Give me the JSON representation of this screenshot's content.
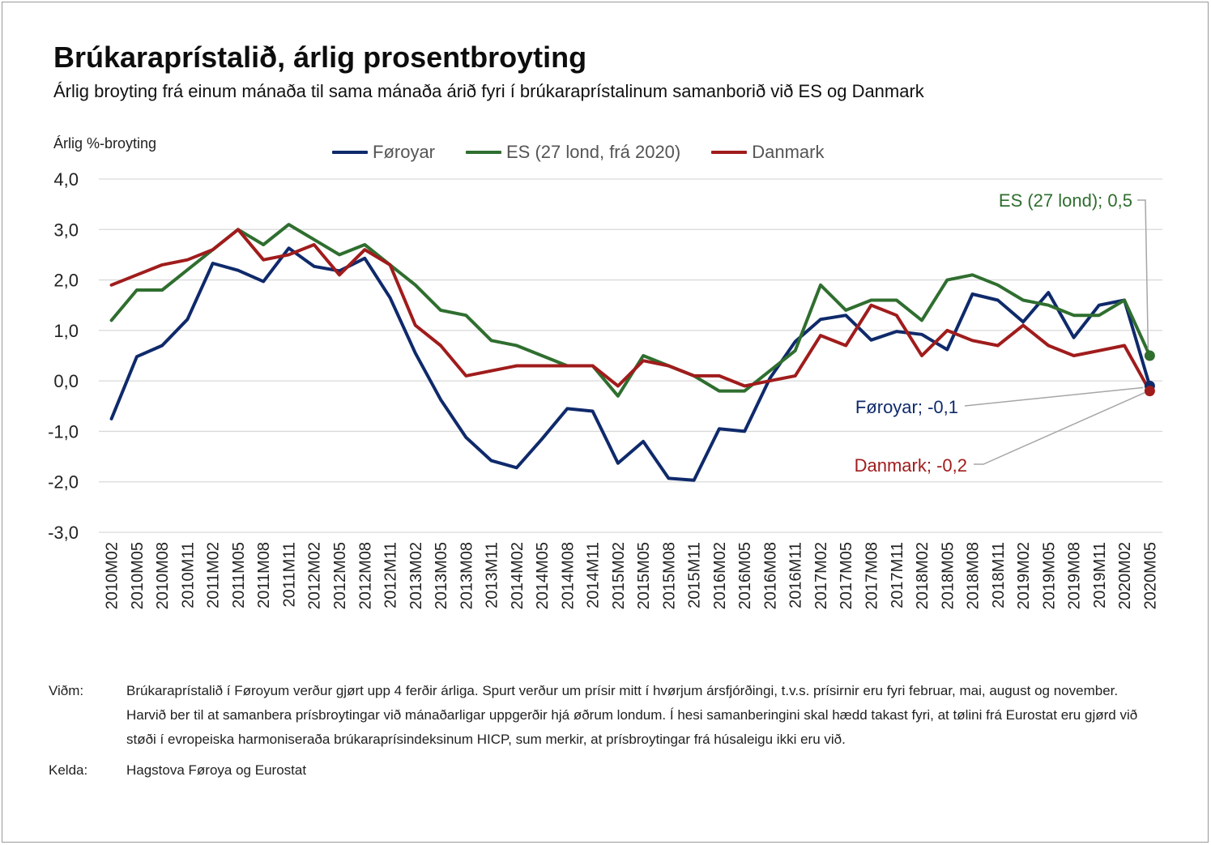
{
  "title": "Brúkaraprístalið, árlig prosentbroyting",
  "subtitle": "Árlig broyting frá einum mánaða til sama mánaða árið fyri í brúkaraprístalinum samanborið við ES og Danmark",
  "notes": {
    "label": "Viðm:",
    "text": "Brúkaraprístalið í Føroyum verður gjørt upp 4 ferðir árliga. Spurt verður um prísir mitt í hvørjum ársfjórðingi, t.v.s. prísirnir eru fyri februar, mai, august og november. Harvið ber til at samanbera prísbroytingar við mánaðarligar uppgerðir hjá øðrum londum. Í hesi samanberingini skal hædd takast fyri, at tølini frá Eurostat eru gjørd við støði í evropeiska harmoniseraða brúkaraprísindeksinum HICP, sum merkir, at prísbroytingar frá húsaleigu ikki eru  við."
  },
  "source": {
    "label": "Kelda:",
    "text": "Hagstova Føroya og Eurostat"
  },
  "chart_data": {
    "type": "line",
    "ylabel": "Árlig %-broyting",
    "ylim": [
      -3,
      4
    ],
    "yticks": [
      4,
      3,
      2,
      1,
      0,
      -1,
      -2,
      -3
    ],
    "ytick_labels": [
      "4,0",
      "3,0",
      "2,0",
      "1,0",
      "0,0",
      "-1,0",
      "-2,0",
      "-3,0"
    ],
    "grid": true,
    "legend_position": "top",
    "categories": [
      "2010M02",
      "2010M05",
      "2010M08",
      "2010M11",
      "2011M02",
      "2011M05",
      "2011M08",
      "2011M11",
      "2012M02",
      "2012M05",
      "2012M08",
      "2012M11",
      "2013M02",
      "2013M05",
      "2013M08",
      "2013M11",
      "2014M02",
      "2014M05",
      "2014M08",
      "2014M11",
      "2015M02",
      "2015M05",
      "2015M08",
      "2015M11",
      "2016M02",
      "2016M05",
      "2016M08",
      "2016M11",
      "2017M02",
      "2017M05",
      "2017M08",
      "2017M11",
      "2018M02",
      "2018M05",
      "2018M08",
      "2018M11",
      "2019M02",
      "2019M05",
      "2019M08",
      "2019M11",
      "2020M02",
      "2020M05"
    ],
    "series": [
      {
        "name": "Føroyar",
        "color": "#0f2a6b",
        "values": [
          -0.75,
          0.48,
          0.7,
          1.22,
          2.33,
          2.19,
          1.97,
          2.63,
          2.27,
          2.18,
          2.43,
          1.65,
          0.55,
          -0.37,
          -1.12,
          -1.58,
          -1.72,
          -1.15,
          -0.55,
          -0.6,
          -1.63,
          -1.2,
          -1.93,
          -1.97,
          -0.95,
          -1.0,
          0.05,
          0.78,
          1.22,
          1.3,
          0.81,
          0.98,
          0.92,
          0.62,
          1.72,
          1.6,
          1.17,
          1.75,
          0.86,
          1.5,
          1.6,
          -0.1
        ]
      },
      {
        "name": "ES (27 lond, frá 2020)",
        "color": "#2f6e2f",
        "values": [
          1.2,
          1.8,
          1.8,
          2.2,
          2.6,
          3.0,
          2.7,
          3.1,
          2.8,
          2.5,
          2.7,
          2.3,
          1.9,
          1.4,
          1.3,
          0.8,
          0.7,
          0.5,
          0.3,
          0.3,
          -0.3,
          0.5,
          0.3,
          0.1,
          -0.2,
          -0.2,
          0.2,
          0.6,
          1.9,
          1.4,
          1.6,
          1.6,
          1.2,
          2.0,
          2.1,
          1.9,
          1.6,
          1.5,
          1.3,
          1.3,
          1.6,
          0.5
        ]
      },
      {
        "name": "Danmark",
        "color": "#a01c1c",
        "values": [
          1.9,
          2.1,
          2.3,
          2.4,
          2.6,
          3.0,
          2.4,
          2.5,
          2.7,
          2.1,
          2.6,
          2.3,
          1.1,
          0.7,
          0.1,
          0.2,
          0.3,
          0.3,
          0.3,
          0.3,
          -0.1,
          0.4,
          0.3,
          0.1,
          0.1,
          -0.1,
          0.0,
          0.1,
          0.9,
          0.7,
          1.5,
          1.3,
          0.5,
          1.0,
          0.8,
          0.7,
          1.1,
          0.7,
          0.5,
          0.6,
          0.7,
          -0.2
        ]
      }
    ],
    "annotations": [
      {
        "text": "ES (27 lond); 0,5",
        "series": 1,
        "color": "#2f6e2f"
      },
      {
        "text": "Føroyar; -0,1",
        "series": 0,
        "color": "#0f2a6b"
      },
      {
        "text": "Danmark; -0,2",
        "series": 2,
        "color": "#a01c1c"
      }
    ]
  }
}
